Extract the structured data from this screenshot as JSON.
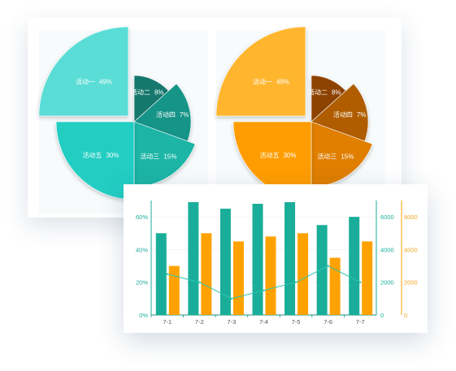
{
  "colors": {
    "teal_bar": "#1aae9a",
    "orange_bar": "#ffa200",
    "line": "#2ec6b2",
    "teal_axis_label": "#1aae9a",
    "orange_axis_label": "#f5a623",
    "left_axis_label": "#1aae9a",
    "x_label": "#555555"
  },
  "chart_data": [
    {
      "type": "pie",
      "variant": "rose",
      "palette": "teal",
      "slices": [
        {
          "name": "活动一",
          "value": 49,
          "label": "49%",
          "color": "#5addd6"
        },
        {
          "name": "活动二",
          "value": 8,
          "label": "8%",
          "color": "#13786d"
        },
        {
          "name": "活动四",
          "value": 7,
          "label": "7%",
          "color": "#149488"
        },
        {
          "name": "活动三",
          "value": 15,
          "label": "15%",
          "color": "#1bb5a6"
        },
        {
          "name": "活动五",
          "value": 30,
          "label": "30%",
          "color": "#24cdc2"
        }
      ]
    },
    {
      "type": "pie",
      "variant": "rose",
      "palette": "orange",
      "slices": [
        {
          "name": "活动一",
          "value": 49,
          "label": "49%",
          "color": "#ffb62e"
        },
        {
          "name": "活动二",
          "value": 8,
          "label": "8%",
          "color": "#8d4300"
        },
        {
          "name": "活动四",
          "value": 7,
          "label": "7%",
          "color": "#b05d00"
        },
        {
          "name": "活动三",
          "value": 15,
          "label": "15%",
          "color": "#e07e00"
        },
        {
          "name": "活动五",
          "value": 30,
          "label": "30%",
          "color": "#ff9d00"
        }
      ]
    },
    {
      "type": "bar",
      "categories": [
        "7-1",
        "7-2",
        "7-3",
        "7-4",
        "7-5",
        "7-6",
        "7-7"
      ],
      "series": [
        {
          "type": "bar",
          "axis": "right1",
          "values": [
            5000,
            6900,
            6500,
            6800,
            6900,
            5500,
            6000
          ]
        },
        {
          "type": "bar",
          "axis": "right2",
          "values": [
            3000,
            5000,
            4500,
            4800,
            5000,
            3500,
            4500
          ]
        },
        {
          "type": "line",
          "axis": "left",
          "values": [
            25,
            20,
            10,
            15,
            20,
            30,
            20
          ]
        }
      ],
      "axes": {
        "left": {
          "ylim": [
            0,
            70
          ],
          "ticks": [
            "0%",
            "20%",
            "40%",
            "60%"
          ],
          "tick_values": [
            0,
            20,
            40,
            60
          ]
        },
        "right1": {
          "ylim": [
            0,
            7000
          ],
          "ticks": [
            "0",
            "2000",
            "4000",
            "6000"
          ],
          "tick_values": [
            0,
            2000,
            4000,
            6000
          ]
        },
        "right2": {
          "ylim": [
            0,
            7000
          ],
          "ticks": [
            "0",
            "2000",
            "4000",
            "6000"
          ],
          "tick_values": [
            0,
            2000,
            4000,
            6000
          ]
        }
      },
      "grid": true,
      "legend": "none"
    }
  ]
}
